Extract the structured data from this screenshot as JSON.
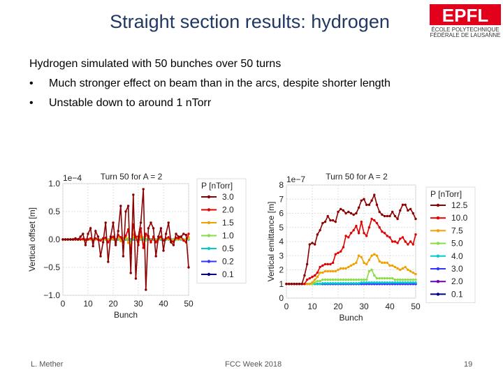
{
  "slide": {
    "title": "Straight section results: hydrogen",
    "intro": "Hydrogen simulated with 50 bunches over 50 turns",
    "bullets": [
      "Much stronger effect on beam than in the arcs, despite shorter length",
      "Unstable down to around 1 nTorr"
    ],
    "bullet_symbol": "•",
    "footer_left": "L. Mether",
    "footer_center": "FCC Week 2018",
    "page_number": "19",
    "logo_text": "EPFL",
    "logo_sub1": "ÉCOLE POLYTECHNIQUE",
    "logo_sub2": "FÉDÉRALE DE LAUSANNE"
  },
  "chart_data": [
    {
      "type": "line",
      "title": "Turn 50 for A = 2",
      "xlabel": "Bunch",
      "ylabel": "Vertical offset [m]",
      "exponent_label": "1e−4",
      "xlim": [
        0,
        50
      ],
      "ylim": [
        -1.0,
        1.0
      ],
      "xticks": [
        "0",
        "10",
        "20",
        "30",
        "40",
        "50"
      ],
      "yticks": [
        "1.0",
        "0.5",
        "0.0",
        "−0.5",
        "−1.0"
      ],
      "legend_title": "P [nTorr]",
      "legend_position": "right",
      "series": [
        {
          "name": "3.0",
          "color": "#8b0000",
          "values": [
            0,
            0,
            0,
            0,
            0,
            0.02,
            0,
            0.05,
            0.1,
            -0.1,
            0.1,
            0.2,
            -0.12,
            0.15,
            0.05,
            -0.3,
            -0.05,
            0.3,
            -0.4,
            0.05,
            0.3,
            -0.1,
            0.15,
            0.6,
            -0.3,
            0.5,
            0.6,
            -0.6,
            0.8,
            -0.7,
            0.05,
            0.3,
            0.9,
            -0.9,
            0.2,
            0.3,
            0.2,
            -0.3,
            0.05,
            0.2,
            -0.2,
            0.1,
            0.3,
            -0.05,
            -0.1,
            0.1,
            0.05,
            0.05,
            0.1,
            0.08,
            -0.5
          ]
        },
        {
          "name": "2.0",
          "color": "#e00000",
          "values": [
            0,
            0,
            0,
            0,
            0,
            0,
            0,
            0,
            0.01,
            -0.01,
            0,
            0.02,
            -0.02,
            0.02,
            0,
            -0.02,
            0.02,
            0.03,
            -0.05,
            0.02,
            0.05,
            -0.06,
            0.08,
            0.04,
            -0.05,
            0.07,
            0.18,
            -0.25,
            0.27,
            0.05,
            -0.1,
            0.2,
            -0.15,
            0.1,
            0.06,
            -0.05,
            0.05,
            -0.05,
            0.02,
            0.05,
            -0.02,
            0.02,
            0.04,
            -0.03,
            -0.04,
            0.03,
            0.02,
            0.05,
            -0.02,
            -0.05,
            0.1
          ]
        },
        {
          "name": "1.5",
          "color": "#f0a000",
          "values": [
            0,
            0,
            0,
            0,
            0,
            0,
            0,
            0,
            0,
            0,
            0,
            0,
            0,
            0.01,
            0,
            -0.01,
            0,
            0.01,
            -0.02,
            0.01,
            0.02,
            -0.02,
            0.04,
            -0.03,
            0.02,
            0.05,
            -0.06,
            -0.1,
            0.09,
            0.03,
            -0.05,
            0.06,
            -0.08,
            0.07,
            0.03,
            -0.03,
            0.02,
            -0.03,
            0.01,
            0.02,
            -0.01,
            0.01,
            0.02,
            -0.02,
            -0.02,
            0.01,
            0.01,
            0.02,
            -0.01,
            -0.02,
            0.04
          ]
        },
        {
          "name": "1.0",
          "color": "#88dd44",
          "values": [
            0,
            0,
            0,
            0,
            0,
            0,
            0,
            0,
            0,
            0,
            0,
            0,
            0,
            0,
            0,
            0,
            0,
            0,
            0,
            0,
            0.01,
            -0.01,
            0.02,
            0.01,
            -0.01,
            0.02,
            0.02,
            -0.03,
            0.03,
            0.01,
            -0.02,
            0.02,
            0.04,
            -0.02,
            0.01,
            -0.01,
            0.02,
            0,
            -0.01,
            0.02,
            -0.01,
            0.01,
            0,
            -0.01,
            0.01,
            0,
            0,
            0.01,
            0,
            0,
            0.01
          ]
        },
        {
          "name": "0.5",
          "color": "#00cccc",
          "values": [
            0,
            0,
            0,
            0,
            0,
            0,
            0,
            0,
            0,
            0,
            0,
            0,
            0,
            0,
            0,
            0,
            0,
            0,
            0,
            0,
            0,
            0,
            0,
            0,
            0,
            0,
            0,
            0,
            0,
            0,
            0,
            0,
            0,
            0,
            0,
            0,
            0,
            0,
            0,
            0,
            0,
            0,
            0,
            0,
            0,
            0,
            0,
            0,
            0,
            0,
            0
          ]
        },
        {
          "name": "0.2",
          "color": "#3333ff",
          "values": [
            0,
            0,
            0,
            0,
            0,
            0,
            0,
            0,
            0,
            0,
            0,
            0,
            0,
            0,
            0,
            0,
            0,
            0,
            0,
            0,
            0,
            0,
            0,
            0,
            0,
            0,
            0,
            0,
            0,
            0,
            0,
            0,
            0,
            0,
            0,
            0,
            0,
            0,
            0,
            0,
            0,
            0,
            0,
            0,
            0,
            0,
            0,
            0,
            0,
            0,
            0
          ]
        },
        {
          "name": "0.1",
          "color": "#000080",
          "values": [
            0,
            0,
            0,
            0,
            0,
            0,
            0,
            0,
            0,
            0,
            0,
            0,
            0,
            0,
            0,
            0,
            0,
            0,
            0,
            0,
            0,
            0,
            0,
            0,
            0,
            0,
            0,
            0,
            0,
            0,
            0,
            0,
            0,
            0,
            0,
            0,
            0,
            0,
            0,
            0,
            0,
            0,
            0,
            0,
            0,
            0,
            0,
            0,
            0,
            0,
            0
          ]
        }
      ]
    },
    {
      "type": "line",
      "title": "Turn 50 for A = 2",
      "xlabel": "Bunch",
      "ylabel": "Vertical emittance [m]",
      "exponent_label": "1e−7",
      "xlim": [
        0,
        50
      ],
      "ylim": [
        0,
        8
      ],
      "xticks": [
        "0",
        "10",
        "20",
        "30",
        "40",
        "50"
      ],
      "yticks": [
        "8",
        "7",
        "6",
        "5",
        "4",
        "3",
        "2",
        "1",
        "0"
      ],
      "legend_title": "P [nTorr]",
      "legend_position": "right",
      "series": [
        {
          "name": "12.5",
          "color": "#8b0000",
          "values": [
            1,
            1,
            1,
            1,
            1,
            1,
            1,
            1.6,
            2.4,
            3.8,
            3.9,
            3.8,
            4.5,
            4.8,
            5.3,
            5.4,
            5.8,
            5.5,
            5.5,
            5.4,
            6.1,
            6.3,
            6.2,
            6.0,
            6.1,
            6.0,
            5.9,
            6.0,
            6.4,
            6.9,
            7.0,
            6.6,
            6.6,
            6.9,
            7.3,
            6.6,
            6.1,
            5.9,
            5.8,
            5.8,
            5.8,
            6.1,
            5.8,
            5.6,
            6.2,
            6.6,
            6.6,
            6.2,
            6.3,
            6.0,
            5.6
          ]
        },
        {
          "name": "10.0",
          "color": "#e00000",
          "values": [
            1,
            1,
            1,
            1,
            1,
            1,
            1,
            1,
            1.3,
            1.4,
            1.5,
            1.6,
            1.8,
            2.2,
            2.3,
            2.4,
            2.4,
            2.4,
            2.5,
            3.1,
            3.2,
            3.3,
            3.6,
            4.4,
            4.3,
            4.6,
            4.8,
            5.1,
            4.6,
            5.4,
            4.6,
            4.4,
            5.0,
            5.6,
            5.5,
            5.3,
            5.0,
            4.7,
            4.6,
            4.4,
            4.3,
            4.0,
            4.0,
            3.9,
            4.2,
            4.3,
            4.0,
            3.8,
            4.0,
            3.8,
            4.5
          ]
        },
        {
          "name": "7.5",
          "color": "#f0a000",
          "values": [
            1,
            1,
            1,
            1,
            1,
            1,
            1,
            1,
            1,
            1,
            1.1,
            1.3,
            1.5,
            1.8,
            1.8,
            1.9,
            1.9,
            1.9,
            1.9,
            1.9,
            2.0,
            2.1,
            2.1,
            2.1,
            2.2,
            2.3,
            2.4,
            2.5,
            3.0,
            2.9,
            2.5,
            2.4,
            2.7,
            3.0,
            3.1,
            3.0,
            2.6,
            2.5,
            2.5,
            2.5,
            2.3,
            2.3,
            2.2,
            2.1,
            2.0,
            2.1,
            2.2,
            2.0,
            1.9,
            1.8,
            1.7
          ]
        },
        {
          "name": "5.0",
          "color": "#88dd44",
          "values": [
            1,
            1,
            1,
            1,
            1,
            1,
            1,
            1,
            1,
            1,
            1,
            1.1,
            1.2,
            1.2,
            1.3,
            1.3,
            1.3,
            1.3,
            1.3,
            1.3,
            1.3,
            1.3,
            1.3,
            1.3,
            1.3,
            1.3,
            1.3,
            1.3,
            1.3,
            1.3,
            1.3,
            1.3,
            1.9,
            2.0,
            1.6,
            1.4,
            1.4,
            1.4,
            1.4,
            1.4,
            1.4,
            1.4,
            1.3,
            1.3,
            1.3,
            1.3,
            1.3,
            1.3,
            1.3,
            1.3,
            1.3
          ]
        },
        {
          "name": "4.0",
          "color": "#00cccc",
          "values": [
            1,
            1,
            1,
            1,
            1,
            1,
            1,
            1,
            1,
            1,
            1,
            1,
            1,
            1,
            1.05,
            1.05,
            1.05,
            1.05,
            1.05,
            1.05,
            1.05,
            1.05,
            1.05,
            1.05,
            1.05,
            1.05,
            1.05,
            1.05,
            1.05,
            1.1,
            1.1,
            1.1,
            1.1,
            1.1,
            1.1,
            1.1,
            1.1,
            1.1,
            1.1,
            1.1,
            1.1,
            1.1,
            1.1,
            1.1,
            1.1,
            1.1,
            1.1,
            1.1,
            1.1,
            1.1,
            1.1
          ]
        },
        {
          "name": "3.0",
          "color": "#3333ff",
          "values": [
            1,
            1,
            1,
            1,
            1,
            1,
            1,
            1,
            1,
            1,
            1,
            1,
            1,
            1,
            1,
            1,
            1,
            1,
            1,
            1,
            1,
            1,
            1,
            1,
            1,
            1,
            1,
            1,
            1,
            1,
            1,
            1,
            1,
            1,
            1,
            1,
            1,
            1,
            1,
            1,
            1,
            1,
            1,
            1,
            1,
            1,
            1,
            1,
            1,
            1,
            1
          ]
        },
        {
          "name": "2.0",
          "color": "#6a00b8",
          "values": [
            1,
            1,
            1,
            1,
            1,
            1,
            1,
            1,
            1,
            1,
            1,
            1,
            1,
            1,
            1,
            1,
            1,
            1,
            1,
            1,
            1,
            1,
            1,
            1,
            1,
            1,
            1,
            1,
            1,
            1,
            1,
            1,
            1,
            1,
            1,
            1,
            1,
            1,
            1,
            1,
            1,
            1,
            1,
            1,
            1,
            1,
            1,
            1,
            1,
            1,
            1
          ]
        },
        {
          "name": "0.1",
          "color": "#000080",
          "values": [
            1,
            1,
            1,
            1,
            1,
            1,
            1,
            1,
            1,
            1,
            1,
            1,
            1,
            1,
            1,
            1,
            1,
            1,
            1,
            1,
            1,
            1,
            1,
            1,
            1,
            1,
            1,
            1,
            1,
            1,
            1,
            1,
            1,
            1,
            1,
            1,
            1,
            1,
            1,
            1,
            1,
            1,
            1,
            1,
            1,
            1,
            1,
            1,
            1,
            1,
            1
          ]
        }
      ]
    }
  ]
}
